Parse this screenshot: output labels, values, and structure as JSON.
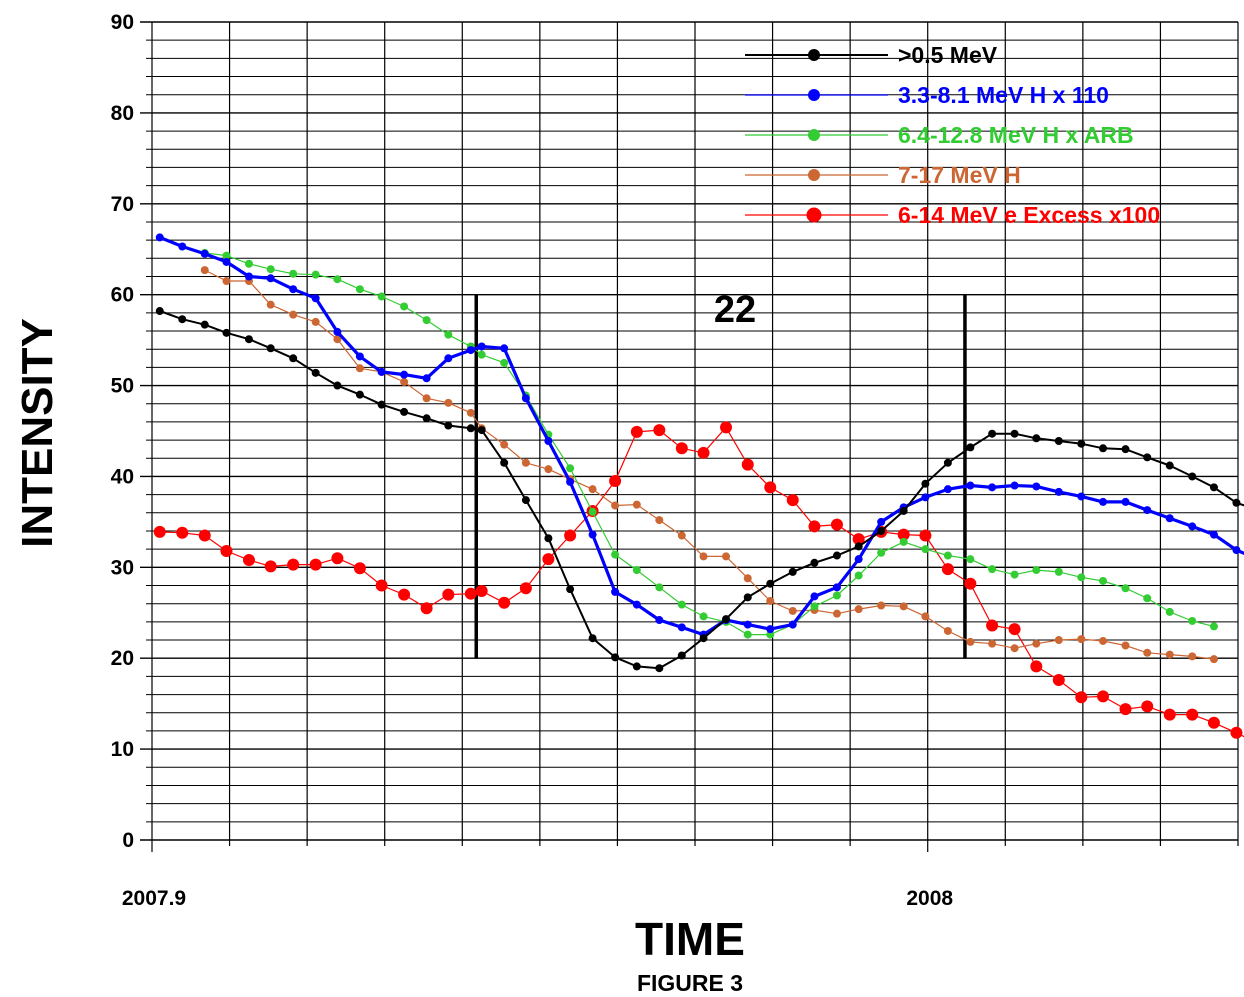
{
  "chart_data": {
    "type": "line",
    "xlabel": "TIME",
    "ylabel": "INTENSITY",
    "caption": "FIGURE 3",
    "annotation": "22",
    "xlim": [
      2007.9,
      2008.04
    ],
    "ylim": [
      0,
      90
    ],
    "x_ticks": [
      {
        "value": 2007.9,
        "label": "2007.9"
      },
      {
        "value": 2008.0,
        "label": "2008"
      }
    ],
    "y_ticks": [
      0,
      10,
      20,
      30,
      40,
      50,
      60,
      70,
      80,
      90
    ],
    "grid": "on",
    "legend_position": "top-right",
    "vertical_markers": [
      {
        "x": 2007.9418,
        "y_range": [
          20,
          60
        ]
      },
      {
        "x": 2008.0048,
        "y_range": [
          20,
          60
        ]
      }
    ],
    "series": [
      {
        "name": ">0.5 MeV",
        "color": "#000000",
        "values": [
          [
            2007.901,
            58.2
          ],
          [
            2007.9039,
            57.3
          ],
          [
            2007.9068,
            56.7
          ],
          [
            2007.9096,
            55.8
          ],
          [
            2007.9125,
            55.1
          ],
          [
            2007.9153,
            54.1
          ],
          [
            2007.9182,
            53.0
          ],
          [
            2007.9211,
            51.4
          ],
          [
            2007.9239,
            50.0
          ],
          [
            2007.9268,
            49.0
          ],
          [
            2007.9296,
            47.9
          ],
          [
            2007.9325,
            47.1
          ],
          [
            2007.9354,
            46.4
          ],
          [
            2007.9382,
            45.6
          ],
          [
            2007.9411,
            45.3
          ],
          [
            2007.9425,
            45.1
          ],
          [
            2007.9454,
            41.5
          ],
          [
            2007.9482,
            37.4
          ],
          [
            2007.9511,
            33.2
          ],
          [
            2007.9539,
            27.6
          ],
          [
            2007.9568,
            22.2
          ],
          [
            2007.9597,
            20.1
          ],
          [
            2007.9625,
            19.1
          ],
          [
            2007.9654,
            18.9
          ],
          [
            2007.9683,
            20.3
          ],
          [
            2007.9711,
            22.2
          ],
          [
            2007.974,
            24.3
          ],
          [
            2007.9768,
            26.7
          ],
          [
            2007.9797,
            28.2
          ],
          [
            2007.9826,
            29.5
          ],
          [
            2007.9854,
            30.5
          ],
          [
            2007.9883,
            31.3
          ],
          [
            2007.9911,
            32.3
          ],
          [
            2007.994,
            34.0
          ],
          [
            2007.9969,
            36.2
          ],
          [
            2007.9997,
            39.2
          ],
          [
            2008.0026,
            41.5
          ],
          [
            2008.0055,
            43.2
          ],
          [
            2008.0083,
            44.7
          ],
          [
            2008.0112,
            44.7
          ],
          [
            2008.014,
            44.2
          ],
          [
            2008.0169,
            43.9
          ],
          [
            2008.0198,
            43.6
          ],
          [
            2008.0226,
            43.1
          ],
          [
            2008.0255,
            43.0
          ],
          [
            2008.0283,
            42.1
          ],
          [
            2008.0312,
            41.2
          ],
          [
            2008.0341,
            40.0
          ],
          [
            2008.0369,
            38.8
          ],
          [
            2008.0398,
            37.1
          ],
          [
            2008.0426,
            36.3
          ]
        ]
      },
      {
        "name": "3.3-8.1 MeV H x 110",
        "color": "#0000ff",
        "values": [
          [
            2007.901,
            66.3
          ],
          [
            2007.9039,
            65.3
          ],
          [
            2007.9068,
            64.5
          ],
          [
            2007.9096,
            63.6
          ],
          [
            2007.9125,
            62.0
          ],
          [
            2007.9153,
            61.8
          ],
          [
            2007.9182,
            60.6
          ],
          [
            2007.9211,
            59.6
          ],
          [
            2007.9239,
            55.9
          ],
          [
            2007.9268,
            53.2
          ],
          [
            2007.9296,
            51.5
          ],
          [
            2007.9325,
            51.2
          ],
          [
            2007.9354,
            50.8
          ],
          [
            2007.9382,
            53.0
          ],
          [
            2007.9411,
            53.9
          ],
          [
            2007.9425,
            54.3
          ],
          [
            2007.9454,
            54.1
          ],
          [
            2007.9482,
            48.6
          ],
          [
            2007.9511,
            43.9
          ],
          [
            2007.9539,
            39.4
          ],
          [
            2007.9568,
            33.6
          ],
          [
            2007.9597,
            27.3
          ],
          [
            2007.9625,
            25.9
          ],
          [
            2007.9654,
            24.2
          ],
          [
            2007.9683,
            23.4
          ],
          [
            2007.9711,
            22.6
          ],
          [
            2007.974,
            24.2
          ],
          [
            2007.9768,
            23.7
          ],
          [
            2007.9797,
            23.2
          ],
          [
            2007.9826,
            23.7
          ],
          [
            2007.9854,
            26.8
          ],
          [
            2007.9883,
            27.8
          ],
          [
            2007.9911,
            30.9
          ],
          [
            2007.994,
            35.0
          ],
          [
            2007.9969,
            36.6
          ],
          [
            2007.9997,
            37.7
          ],
          [
            2008.0026,
            38.6
          ],
          [
            2008.0055,
            39.0
          ],
          [
            2008.0083,
            38.8
          ],
          [
            2008.0112,
            39.0
          ],
          [
            2008.014,
            38.9
          ],
          [
            2008.0169,
            38.3
          ],
          [
            2008.0198,
            37.8
          ],
          [
            2008.0226,
            37.2
          ],
          [
            2008.0255,
            37.2
          ],
          [
            2008.0283,
            36.3
          ],
          [
            2008.0312,
            35.4
          ],
          [
            2008.0341,
            34.5
          ],
          [
            2008.0369,
            33.6
          ],
          [
            2008.0398,
            31.9
          ],
          [
            2008.0426,
            30.9
          ]
        ]
      },
      {
        "name": "6.4-12.8 MeV H x ARB",
        "color": "#33cc33",
        "values": [
          [
            2007.9068,
            64.6
          ],
          [
            2007.9096,
            64.3
          ],
          [
            2007.9125,
            63.4
          ],
          [
            2007.9153,
            62.8
          ],
          [
            2007.9182,
            62.3
          ],
          [
            2007.9211,
            62.2
          ],
          [
            2007.9239,
            61.7
          ],
          [
            2007.9268,
            60.6
          ],
          [
            2007.9296,
            59.8
          ],
          [
            2007.9325,
            58.7
          ],
          [
            2007.9354,
            57.2
          ],
          [
            2007.9382,
            55.6
          ],
          [
            2007.9411,
            54.3
          ],
          [
            2007.9425,
            53.4
          ],
          [
            2007.9454,
            52.5
          ],
          [
            2007.9482,
            48.9
          ],
          [
            2007.9511,
            44.6
          ],
          [
            2007.9539,
            40.9
          ],
          [
            2007.9568,
            36.1
          ],
          [
            2007.9597,
            31.4
          ],
          [
            2007.9625,
            29.7
          ],
          [
            2007.9654,
            27.8
          ],
          [
            2007.9683,
            25.9
          ],
          [
            2007.9711,
            24.6
          ],
          [
            2007.974,
            24.0
          ],
          [
            2007.9768,
            22.6
          ],
          [
            2007.9797,
            22.6
          ],
          [
            2007.9826,
            23.7
          ],
          [
            2007.9854,
            25.7
          ],
          [
            2007.9883,
            26.9
          ],
          [
            2007.9911,
            29.1
          ],
          [
            2007.994,
            31.6
          ],
          [
            2007.9969,
            32.8
          ],
          [
            2007.9997,
            32.0
          ],
          [
            2008.0026,
            31.3
          ],
          [
            2008.0055,
            30.9
          ],
          [
            2008.0083,
            29.8
          ],
          [
            2008.0112,
            29.2
          ],
          [
            2008.014,
            29.7
          ],
          [
            2008.0169,
            29.5
          ],
          [
            2008.0198,
            28.9
          ],
          [
            2008.0226,
            28.5
          ],
          [
            2008.0255,
            27.7
          ],
          [
            2008.0283,
            26.6
          ],
          [
            2008.0312,
            25.1
          ],
          [
            2008.0341,
            24.1
          ],
          [
            2008.0369,
            23.5
          ]
        ]
      },
      {
        "name": "7-17 MeV H",
        "color": "#cc6633",
        "values": [
          [
            2007.9068,
            62.7
          ],
          [
            2007.9096,
            61.5
          ],
          [
            2007.9125,
            61.5
          ],
          [
            2007.9153,
            58.9
          ],
          [
            2007.9182,
            57.8
          ],
          [
            2007.9211,
            57.0
          ],
          [
            2007.9239,
            55.1
          ],
          [
            2007.9268,
            51.9
          ],
          [
            2007.9296,
            51.5
          ],
          [
            2007.9325,
            50.4
          ],
          [
            2007.9354,
            48.6
          ],
          [
            2007.9382,
            48.1
          ],
          [
            2007.9411,
            47.0
          ],
          [
            2007.9425,
            45.3
          ],
          [
            2007.9454,
            43.5
          ],
          [
            2007.9482,
            41.5
          ],
          [
            2007.9511,
            40.8
          ],
          [
            2007.9539,
            39.7
          ],
          [
            2007.9568,
            38.6
          ],
          [
            2007.9597,
            36.8
          ],
          [
            2007.9625,
            36.9
          ],
          [
            2007.9654,
            35.2
          ],
          [
            2007.9683,
            33.5
          ],
          [
            2007.9711,
            31.2
          ],
          [
            2007.974,
            31.2
          ],
          [
            2007.9768,
            28.8
          ],
          [
            2007.9797,
            26.3
          ],
          [
            2007.9826,
            25.2
          ],
          [
            2007.9854,
            25.3
          ],
          [
            2007.9883,
            24.9
          ],
          [
            2007.9911,
            25.4
          ],
          [
            2007.994,
            25.8
          ],
          [
            2007.9969,
            25.7
          ],
          [
            2007.9997,
            24.6
          ],
          [
            2008.0026,
            23.0
          ],
          [
            2008.0055,
            21.8
          ],
          [
            2008.0083,
            21.6
          ],
          [
            2008.0112,
            21.1
          ],
          [
            2008.014,
            21.6
          ],
          [
            2008.0169,
            22.0
          ],
          [
            2008.0198,
            22.1
          ],
          [
            2008.0226,
            21.9
          ],
          [
            2008.0255,
            21.4
          ],
          [
            2008.0283,
            20.6
          ],
          [
            2008.0312,
            20.4
          ],
          [
            2008.0341,
            20.2
          ],
          [
            2008.0369,
            19.9
          ]
        ]
      },
      {
        "name": "6-14 MeV e Excess x100",
        "color": "#ff0000",
        "values": [
          [
            2007.901,
            33.9
          ],
          [
            2007.9039,
            33.8
          ],
          [
            2007.9068,
            33.5
          ],
          [
            2007.9096,
            31.8
          ],
          [
            2007.9125,
            30.8
          ],
          [
            2007.9153,
            30.1
          ],
          [
            2007.9182,
            30.3
          ],
          [
            2007.9211,
            30.3
          ],
          [
            2007.9239,
            31.0
          ],
          [
            2007.9268,
            29.9
          ],
          [
            2007.9296,
            28.0
          ],
          [
            2007.9325,
            27.0
          ],
          [
            2007.9354,
            25.5
          ],
          [
            2007.9382,
            27.0
          ],
          [
            2007.9411,
            27.1
          ],
          [
            2007.9425,
            27.4
          ],
          [
            2007.9454,
            26.1
          ],
          [
            2007.9482,
            27.7
          ],
          [
            2007.9511,
            30.9
          ],
          [
            2007.9539,
            33.5
          ],
          [
            2007.9568,
            36.2
          ],
          [
            2007.9597,
            39.5
          ],
          [
            2007.9625,
            44.9
          ],
          [
            2007.9654,
            45.1
          ],
          [
            2007.9683,
            43.1
          ],
          [
            2007.9711,
            42.6
          ],
          [
            2007.974,
            45.4
          ],
          [
            2007.9768,
            41.3
          ],
          [
            2007.9797,
            38.8
          ],
          [
            2007.9826,
            37.4
          ],
          [
            2007.9854,
            34.5
          ],
          [
            2007.9883,
            34.7
          ],
          [
            2007.9911,
            33.1
          ],
          [
            2007.994,
            33.9
          ],
          [
            2007.9969,
            33.6
          ],
          [
            2007.9997,
            33.5
          ],
          [
            2008.0026,
            29.8
          ],
          [
            2008.0055,
            28.2
          ],
          [
            2008.0083,
            23.6
          ],
          [
            2008.0112,
            23.2
          ],
          [
            2008.014,
            19.1
          ],
          [
            2008.0169,
            17.6
          ],
          [
            2008.0198,
            15.7
          ],
          [
            2008.0226,
            15.8
          ],
          [
            2008.0255,
            14.4
          ],
          [
            2008.0283,
            14.7
          ],
          [
            2008.0312,
            13.8
          ],
          [
            2008.0341,
            13.8
          ],
          [
            2008.0369,
            12.9
          ],
          [
            2008.0398,
            11.8
          ],
          [
            2008.0426,
            10.6
          ]
        ]
      }
    ]
  }
}
